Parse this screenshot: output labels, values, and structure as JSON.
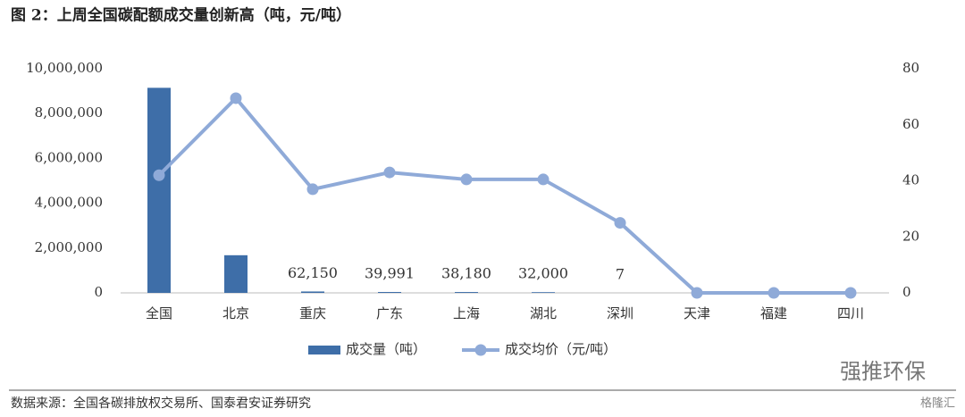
{
  "chart_data": {
    "type": "bar",
    "title": "图 2：上周全国碳配额成交量创新高（吨，元/吨）",
    "categories": [
      "全国",
      "北京",
      "重庆",
      "广东",
      "上海",
      "湖北",
      "深圳",
      "天津",
      "福建",
      "四川"
    ],
    "series": [
      {
        "name": "成交量（吨）",
        "type": "bar",
        "color": "#3e6ea8",
        "values": [
          9150000,
          1680000,
          62150,
          39991,
          38180,
          32000,
          7,
          0,
          0,
          0
        ],
        "value_labels": [
          null,
          null,
          "62,150",
          "39,991",
          "38,180",
          "32,000",
          "7",
          null,
          null,
          null
        ]
      },
      {
        "name": "成交均价（元/吨）",
        "type": "line",
        "axis": "y2",
        "color": "#8faad8",
        "values": [
          42,
          69.5,
          37,
          43,
          40.5,
          40.5,
          25,
          0,
          0,
          0
        ]
      }
    ],
    "ylim": [
      0,
      10000000
    ],
    "yticks": [
      0,
      {
        "value": 2000000,
        "label": "2,000,000"
      },
      {
        "value": 4000000,
        "label": "4,000,000"
      },
      {
        "value": 6000000,
        "label": "6,000,000"
      },
      {
        "value": 8000000,
        "label": "8,000,000"
      },
      {
        "value": 10000000,
        "label": "10,000,000"
      }
    ],
    "y2lim": [
      0,
      80
    ],
    "y2ticks": [
      0,
      20,
      40,
      60,
      80
    ],
    "legend": "bottom",
    "source": "数据来源：全国各碳排放权交易所、国泰君安证券研究",
    "watermarks": [
      "强推环保",
      "格隆汇"
    ]
  }
}
